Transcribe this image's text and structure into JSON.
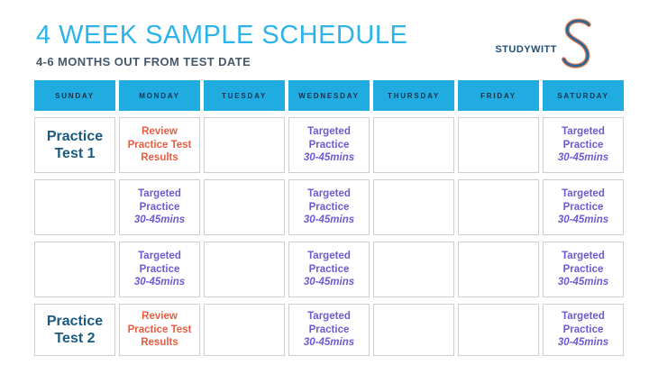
{
  "header": {
    "title": "4 WEEK SAMPLE SCHEDULE",
    "subtitle": "4-6 MONTHS OUT FROM TEST DATE",
    "logo_text": "STUDYWITT",
    "logo_letter": "S"
  },
  "colors": {
    "title_cyan": "#2CB4E8",
    "header_cyan": "#21ACE1",
    "header_text_navy": "#15324B",
    "practice_test_blue": "#1A5A80",
    "review_orange": "#E95C3F",
    "targeted_purple": "#6B5BD2",
    "subtitle_slate": "#44586B",
    "cell_border": "#CFCFCF",
    "logo_navy": "#1F4E79",
    "logo_s_blue": "#2E6496",
    "logo_s_orange": "#E87E4F"
  },
  "table": {
    "days": [
      "SUNDAY",
      "MONDAY",
      "TUESDAY",
      "WEDNESDAY",
      "THURSDAY",
      "FRIDAY",
      "SATURDAY"
    ],
    "rows": [
      [
        {
          "kind": "test",
          "lines": [
            "Practice",
            "Test 1"
          ]
        },
        {
          "kind": "review",
          "lines": [
            "Review",
            "Practice Test",
            "Results"
          ]
        },
        {
          "kind": "empty"
        },
        {
          "kind": "targeted",
          "lines": [
            "Targeted",
            "Practice"
          ],
          "duration": "30-45mins"
        },
        {
          "kind": "empty"
        },
        {
          "kind": "empty"
        },
        {
          "kind": "targeted",
          "lines": [
            "Targeted",
            "Practice"
          ],
          "duration": "30-45mins"
        }
      ],
      [
        {
          "kind": "empty"
        },
        {
          "kind": "targeted",
          "lines": [
            "Targeted",
            "Practice"
          ],
          "duration": "30-45mins"
        },
        {
          "kind": "empty"
        },
        {
          "kind": "targeted",
          "lines": [
            "Targeted",
            "Practice"
          ],
          "duration": "30-45mins"
        },
        {
          "kind": "empty"
        },
        {
          "kind": "empty"
        },
        {
          "kind": "targeted",
          "lines": [
            "Targeted",
            "Practice"
          ],
          "duration": "30-45mins"
        }
      ],
      [
        {
          "kind": "empty"
        },
        {
          "kind": "targeted",
          "lines": [
            "Targeted",
            "Practice"
          ],
          "duration": "30-45mins"
        },
        {
          "kind": "empty"
        },
        {
          "kind": "targeted",
          "lines": [
            "Targeted",
            "Practice"
          ],
          "duration": "30-45mins"
        },
        {
          "kind": "empty"
        },
        {
          "kind": "empty"
        },
        {
          "kind": "targeted",
          "lines": [
            "Targeted",
            "Practice"
          ],
          "duration": "30-45mins"
        }
      ],
      [
        {
          "kind": "test",
          "lines": [
            "Practice",
            "Test 2"
          ]
        },
        {
          "kind": "review",
          "lines": [
            "Review",
            "Practice Test",
            "Results"
          ]
        },
        {
          "kind": "empty"
        },
        {
          "kind": "targeted",
          "lines": [
            "Targeted",
            "Practice"
          ],
          "duration": "30-45mins"
        },
        {
          "kind": "empty"
        },
        {
          "kind": "empty"
        },
        {
          "kind": "targeted",
          "lines": [
            "Targeted",
            "Practice"
          ],
          "duration": "30-45mins"
        }
      ]
    ]
  }
}
